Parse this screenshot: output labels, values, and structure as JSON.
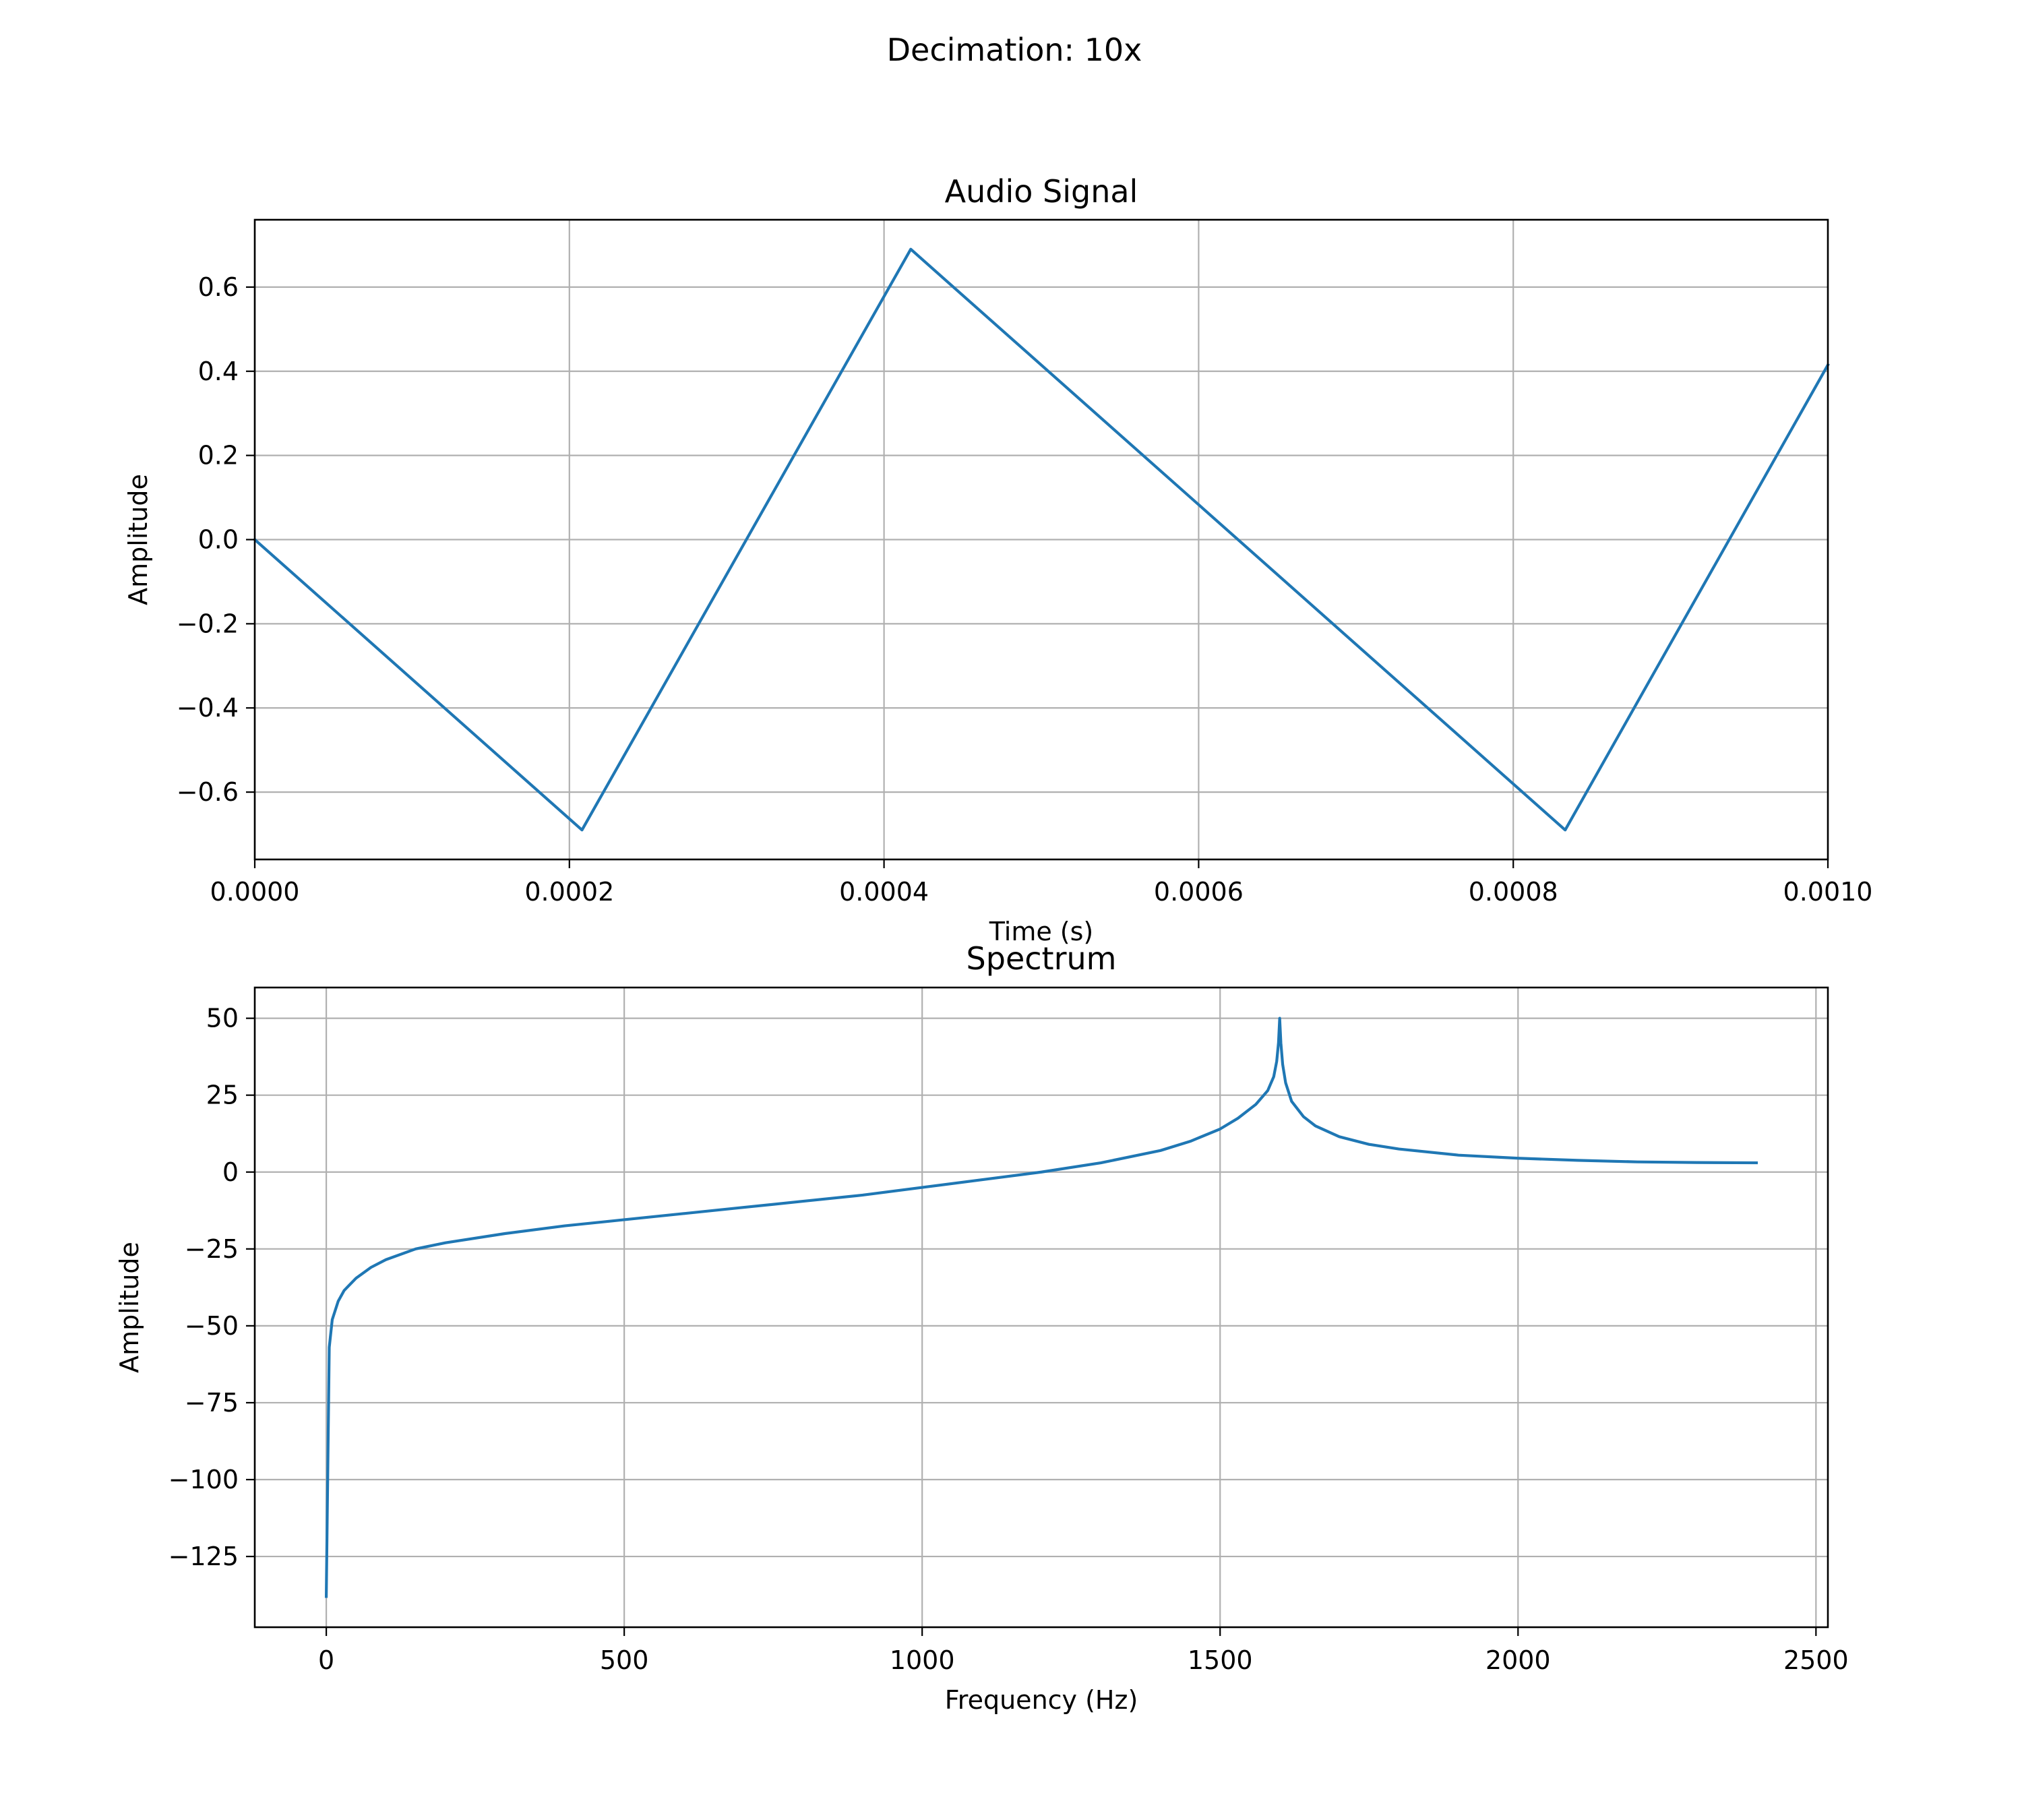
{
  "figure": {
    "suptitle": "Decimation: 10x",
    "line_color": "#1f77b4"
  },
  "chart_data": [
    {
      "type": "line",
      "title": "Audio Signal",
      "xlabel": "Time (s)",
      "ylabel": "Amplitude",
      "xlim": [
        0,
        0.001
      ],
      "ylim": [
        -0.76,
        0.76
      ],
      "grid": true,
      "x_ticks": [
        0,
        0.0002,
        0.0004,
        0.0006,
        0.0008,
        0.001
      ],
      "x_tick_labels": [
        "0.0000",
        "0.0002",
        "0.0004",
        "0.0006",
        "0.0008",
        "0.0010"
      ],
      "y_ticks": [
        0.6,
        0.4,
        0.2,
        0.0,
        -0.2,
        -0.4,
        -0.6
      ],
      "y_tick_labels": [
        "0.6",
        "0.4",
        "0.2",
        "0.0",
        "−0.2",
        "−0.4",
        "−0.6"
      ],
      "series": [
        {
          "x": [
            0,
            0.000208,
            0.000417,
            0.000833,
            0.001
          ],
          "y": [
            0,
            -0.69,
            0.69,
            -0.69,
            0.415
          ]
        }
      ]
    },
    {
      "type": "line",
      "title": "Spectrum",
      "xlabel": "Frequency (Hz)",
      "ylabel": "Amplitude",
      "xlim": [
        -120,
        2520
      ],
      "ylim": [
        -148,
        60
      ],
      "grid": true,
      "x_ticks": [
        0,
        500,
        1000,
        1500,
        2000,
        2500
      ],
      "x_tick_labels": [
        "0",
        "500",
        "1000",
        "1500",
        "2000",
        "2500"
      ],
      "y_ticks": [
        50,
        25,
        0,
        -25,
        -50,
        -75,
        -100,
        -125
      ],
      "y_tick_labels": [
        "50",
        "25",
        "0",
        "−25",
        "−50",
        "−75",
        "−100",
        "−125"
      ],
      "series": [
        {
          "x": [
            0,
            5,
            10,
            20,
            30,
            50,
            75,
            100,
            150,
            200,
            300,
            400,
            500,
            600,
            700,
            800,
            900,
            1000,
            1100,
            1200,
            1300,
            1400,
            1450,
            1500,
            1530,
            1560,
            1580,
            1590,
            1595,
            1598,
            1600,
            1602,
            1605,
            1610,
            1620,
            1640,
            1660,
            1700,
            1750,
            1800,
            1900,
            2000,
            2100,
            2200,
            2300,
            2400
          ],
          "y": [
            -138,
            -57,
            -48,
            -42,
            -38.5,
            -34.5,
            -31,
            -28.5,
            -25,
            -23,
            -20,
            -17.5,
            -15.5,
            -13.5,
            -11.5,
            -9.5,
            -7.5,
            -5,
            -2.5,
            0,
            3,
            7,
            10,
            14,
            17.5,
            22,
            26.5,
            31,
            36,
            42,
            50,
            42,
            35,
            29,
            23,
            18,
            15,
            11.5,
            9,
            7.5,
            5.5,
            4.5,
            3.8,
            3.3,
            3.1,
            3
          ]
        }
      ]
    }
  ]
}
